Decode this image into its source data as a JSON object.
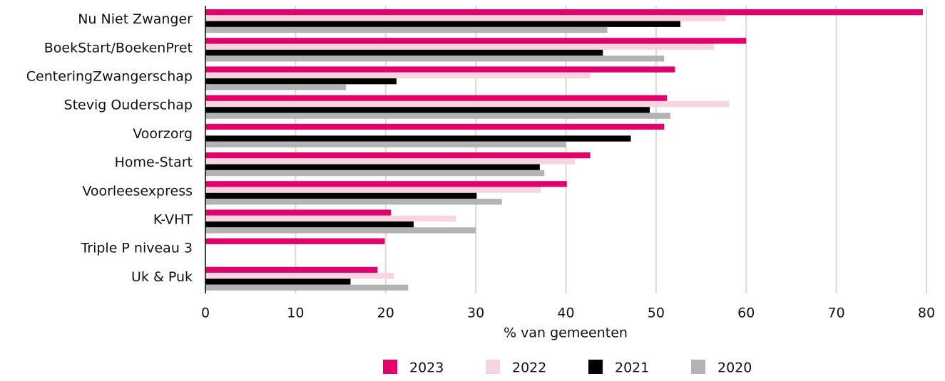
{
  "chart_data": {
    "type": "hbar",
    "xlabel": "% van gemeenten",
    "categories": [
      "Nu Niet Zwanger",
      "BoekStart/BoekenPret",
      "CenteringZwangerschap",
      "Stevig Ouderschap",
      "Voorzorg",
      "Home-Start",
      "Voorleesexpress",
      "K-VHT",
      "Triple P niveau 3",
      "Uk & Puk"
    ],
    "series": [
      {
        "name": "2023",
        "color": "#e2006a",
        "values": [
          79.6,
          60.0,
          52.1,
          51.2,
          50.9,
          42.7,
          40.1,
          20.6,
          19.9,
          19.1
        ]
      },
      {
        "name": "2022",
        "color": "#f8d3e0",
        "values": [
          57.7,
          56.4,
          42.7,
          58.1,
          null,
          41.0,
          37.2,
          27.8,
          null,
          20.9
        ]
      },
      {
        "name": "2021",
        "color": "#000000",
        "values": [
          52.7,
          44.1,
          21.2,
          49.3,
          47.2,
          37.1,
          30.1,
          23.1,
          null,
          16.1
        ]
      },
      {
        "name": "2020",
        "color": "#b3b3b3",
        "values": [
          44.6,
          50.9,
          15.6,
          51.6,
          40.0,
          37.6,
          32.9,
          30.0,
          null,
          22.5
        ]
      }
    ],
    "xlim": [
      0,
      80
    ],
    "xticks": [
      0,
      10,
      20,
      30,
      40,
      50,
      60,
      70,
      80
    ],
    "grid": true,
    "legend": "bottom"
  }
}
